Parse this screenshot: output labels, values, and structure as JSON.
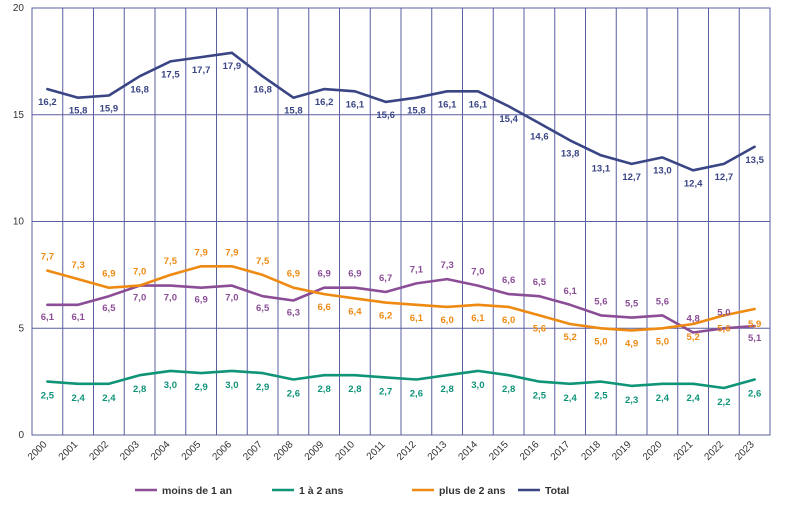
{
  "chart_data": {
    "type": "line",
    "x": [
      "2000",
      "2001",
      "2002",
      "2003",
      "2004",
      "2005",
      "2006",
      "2007",
      "2008",
      "2009",
      "2010",
      "2011",
      "2012",
      "2013",
      "2014",
      "2015",
      "2016",
      "2017",
      "2018",
      "2019",
      "2020",
      "2021",
      "2022",
      "2023"
    ],
    "ylim": [
      0,
      20
    ],
    "yticks": [
      "0",
      "5",
      "10",
      "15",
      "20"
    ],
    "grid": true,
    "legend_position": "bottom",
    "series": [
      {
        "name": "moins de 1 an",
        "color": "#8B4E96",
        "values": [
          6.1,
          6.1,
          6.5,
          7.0,
          7.0,
          6.9,
          7.0,
          6.5,
          6.3,
          6.9,
          6.9,
          6.7,
          7.1,
          7.3,
          7.0,
          6.6,
          6.5,
          6.1,
          5.6,
          5.5,
          5.6,
          4.8,
          5.0,
          5.1
        ],
        "labels": [
          "6,1",
          "6,1",
          "6,5",
          "7,0",
          "7,0",
          "6,9",
          "7,0",
          "6,5",
          "6,3",
          "6,9",
          "6,9",
          "6,7",
          "7,1",
          "7,3",
          "7,0",
          "6,6",
          "6,5",
          "6,1",
          "5,6",
          "5,5",
          "5,6",
          "4,8",
          "5,0",
          "5,1"
        ]
      },
      {
        "name": "1 à 2 ans",
        "color": "#0F9478",
        "values": [
          2.5,
          2.4,
          2.4,
          2.8,
          3.0,
          2.9,
          3.0,
          2.9,
          2.6,
          2.8,
          2.8,
          2.7,
          2.6,
          2.8,
          3.0,
          2.8,
          2.5,
          2.4,
          2.5,
          2.3,
          2.4,
          2.4,
          2.2,
          2.6
        ],
        "labels": [
          "2,5",
          "2,4",
          "2,4",
          "2,8",
          "3,0",
          "2,9",
          "3,0",
          "2,9",
          "2,6",
          "2,8",
          "2,8",
          "2,7",
          "2,6",
          "2,8",
          "3,0",
          "2,8",
          "2,5",
          "2,4",
          "2,5",
          "2,3",
          "2,4",
          "2,4",
          "2,2",
          "2,6"
        ]
      },
      {
        "name": "plus de 2 ans",
        "color": "#EE8A12",
        "values": [
          7.7,
          7.3,
          6.9,
          7.0,
          7.5,
          7.9,
          7.9,
          7.5,
          6.9,
          6.6,
          6.4,
          6.2,
          6.1,
          6.0,
          6.1,
          6.0,
          5.6,
          5.2,
          5.0,
          4.9,
          5.0,
          5.2,
          5.6,
          5.9
        ],
        "labels": [
          "7,7",
          "7,3",
          "6,9",
          "7,0",
          "7,5",
          "7,9",
          "7,9",
          "7,5",
          "6,9",
          "6,6",
          "6,4",
          "6,2",
          "6,1",
          "6,0",
          "6,1",
          "6,0",
          "5,6",
          "5,2",
          "5,0",
          "4,9",
          "5,0",
          "5,2",
          "5,6",
          "5,9"
        ]
      },
      {
        "name": "Total",
        "color": "#3A4585",
        "values": [
          16.2,
          15.8,
          15.9,
          16.8,
          17.5,
          17.7,
          17.9,
          16.8,
          15.8,
          16.2,
          16.1,
          15.6,
          15.8,
          16.1,
          16.1,
          15.4,
          14.6,
          13.8,
          13.1,
          12.7,
          13.0,
          12.4,
          12.7,
          13.5
        ],
        "labels": [
          "16,2",
          "15,8",
          "15,9",
          "16,8",
          "17,5",
          "17,7",
          "17,9",
          "16,8",
          "15,8",
          "16,2",
          "16,1",
          "15,6",
          "15,8",
          "16,1",
          "16,1",
          "15,4",
          "14,6",
          "13,8",
          "13,1",
          "12,7",
          "13,0",
          "12,4",
          "12,7",
          "13,5"
        ]
      }
    ]
  }
}
